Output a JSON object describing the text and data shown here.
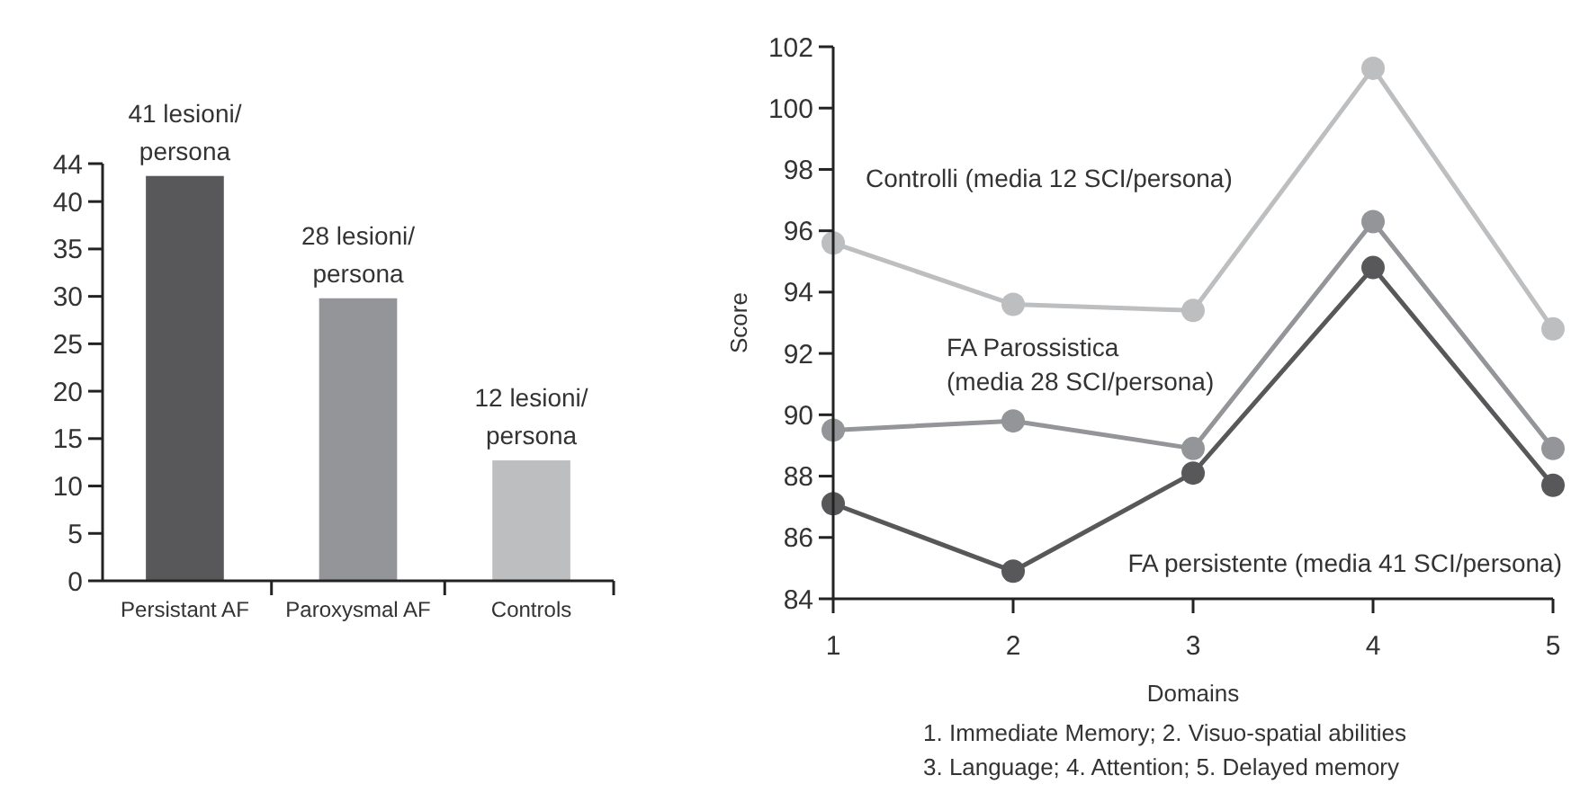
{
  "chart_data": [
    {
      "type": "bar",
      "categories": [
        "Persistant AF",
        "Paroxysmal AF",
        "Controls"
      ],
      "values": [
        42.7,
        29.8,
        12.7
      ],
      "colors": [
        "#58585a",
        "#939598",
        "#bcbec0"
      ],
      "ylim": [
        0,
        44
      ],
      "yticks": [
        0,
        5,
        10,
        15,
        20,
        25,
        30,
        35,
        40,
        44
      ],
      "grid": false,
      "annotations": [
        {
          "text": "41 lesioni/\npersona",
          "x": "Persistant AF",
          "y": 42.7
        },
        {
          "text": "28 lesioni/\npersona",
          "x": "Paroxysmal AF",
          "y": 29.8
        },
        {
          "text": "12 lesioni/\npersona",
          "x": "Controls",
          "y": 12.7
        }
      ]
    },
    {
      "type": "line",
      "xlabel": "Domains",
      "ylabel": "Score",
      "x": [
        1,
        2,
        3,
        4,
        5
      ],
      "xlim": [
        1,
        5
      ],
      "xticks": [
        1,
        2,
        3,
        4,
        5
      ],
      "ylim": [
        84,
        102
      ],
      "yticks": [
        84,
        86,
        88,
        90,
        92,
        94,
        96,
        98,
        100,
        102
      ],
      "marker": "circle",
      "grid": false,
      "legend": false,
      "series": [
        {
          "name": "Controlli (media 12 SCI/persona)",
          "color": "#bcbec0",
          "values": [
            95.6,
            93.6,
            93.4,
            101.3,
            92.8
          ]
        },
        {
          "name": "FA Parossistica\n(media 28 SCI/persona)",
          "color": "#939598",
          "values": [
            89.5,
            89.8,
            88.9,
            96.3,
            88.9
          ]
        },
        {
          "name": "FA persistente (media 41 SCI/persona)",
          "color": "#58585a",
          "values": [
            87.1,
            84.9,
            88.1,
            94.8,
            87.7
          ]
        }
      ],
      "annotations": [
        "1. Immediate Memory; 2. Visuo-spatial abilities",
        "3. Language; 4. Attention; 5. Delayed memory"
      ]
    }
  ]
}
